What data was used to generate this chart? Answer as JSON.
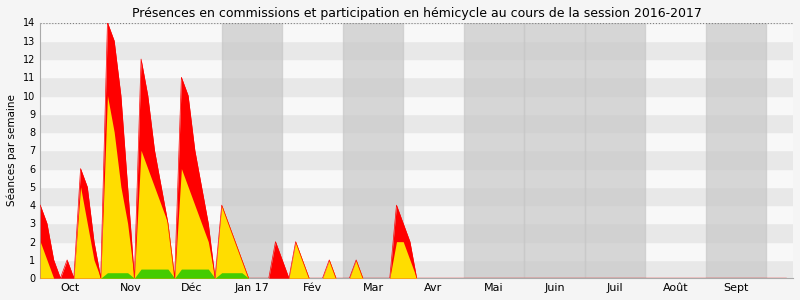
{
  "title": "Présences en commissions et participation en hémicycle au cours de la session 2016-2017",
  "ylabel": "Séances par semaine",
  "ylim": [
    0,
    14
  ],
  "yticks": [
    0,
    1,
    2,
    3,
    4,
    5,
    6,
    7,
    8,
    9,
    10,
    11,
    12,
    13,
    14
  ],
  "xlabel_months": [
    "Oct",
    "Nov",
    "Déc",
    "Jan 17",
    "Fév",
    "Mar",
    "Avr",
    "Mai",
    "Juin",
    "Juil",
    "Août",
    "Sept"
  ],
  "shaded_months": [
    3,
    5,
    7,
    8,
    9,
    11
  ],
  "background_color": "#f0f0f0",
  "shade_color": "#c8c8c8",
  "stripe_colors": [
    "#e8e8e8",
    "#f8f8f8"
  ],
  "color_red": "#ff0000",
  "color_yellow": "#ffdd00",
  "color_green": "#44cc00",
  "x_points": [
    0,
    1,
    2,
    3,
    4,
    5,
    6,
    7,
    8,
    9,
    10,
    11,
    12,
    13,
    14,
    15,
    16,
    17,
    18,
    19,
    20,
    21,
    22,
    23,
    24,
    25,
    26,
    27,
    28,
    29,
    30,
    31,
    32,
    33,
    34,
    35,
    36,
    37,
    38,
    39,
    40,
    41,
    42,
    43,
    44,
    45,
    46,
    47,
    48,
    49,
    50,
    51,
    52,
    53,
    54,
    55,
    56,
    57,
    58,
    59,
    60,
    61,
    62,
    63,
    64,
    65,
    66,
    67,
    68,
    69,
    70,
    71,
    72,
    73,
    74,
    75,
    76,
    77,
    78,
    79,
    80,
    81,
    82,
    83,
    84,
    85,
    86,
    87,
    88,
    89,
    90,
    91,
    92,
    93,
    94,
    95,
    96,
    97,
    98,
    99,
    100,
    101,
    102,
    103,
    104,
    105,
    106,
    107,
    108,
    109,
    110,
    111
  ],
  "red_values": [
    4,
    3,
    1,
    0,
    1,
    0,
    6,
    5,
    2,
    0,
    14,
    13,
    10,
    5,
    0,
    12,
    10,
    7,
    5,
    3,
    0,
    11,
    10,
    7,
    5,
    3,
    0,
    4,
    3,
    2,
    1,
    0,
    0,
    0,
    0,
    2,
    1,
    0,
    2,
    1,
    0,
    0,
    0,
    1,
    0,
    0,
    0,
    1,
    0,
    0,
    0,
    0,
    0,
    4,
    3,
    2,
    0,
    0,
    0,
    0,
    0,
    0,
    0,
    0,
    0,
    0,
    0,
    0,
    0,
    0,
    0,
    0,
    0,
    0,
    0,
    0,
    0,
    0,
    0,
    0,
    0,
    0,
    0,
    0,
    0,
    0,
    0,
    0,
    0,
    0,
    0,
    0,
    0,
    0,
    0,
    0,
    0,
    0,
    0,
    0,
    0,
    0,
    0,
    0,
    0,
    0,
    0,
    0,
    0,
    0,
    0,
    0
  ],
  "yellow_values": [
    2,
    1,
    0,
    0,
    0,
    0,
    5,
    3,
    1,
    0,
    10,
    8,
    5,
    3,
    0,
    7,
    6,
    5,
    4,
    3,
    0,
    6,
    5,
    4,
    3,
    2,
    0,
    4,
    3,
    2,
    1,
    0,
    0,
    0,
    0,
    0,
    0,
    0,
    2,
    1,
    0,
    0,
    0,
    1,
    0,
    0,
    0,
    1,
    0,
    0,
    0,
    0,
    0,
    2,
    2,
    1,
    0,
    0,
    0,
    0,
    0,
    0,
    0,
    0,
    0,
    0,
    0,
    0,
    0,
    0,
    0,
    0,
    0,
    0,
    0,
    0,
    0,
    0,
    0,
    0,
    0,
    0,
    0,
    0,
    0,
    0,
    0,
    0,
    0,
    0,
    0,
    0,
    0,
    0,
    0,
    0,
    0,
    0,
    0,
    0,
    0,
    0,
    0,
    0,
    0,
    0,
    0,
    0,
    0,
    0,
    0,
    0
  ],
  "green_values": [
    0,
    0,
    0,
    0,
    0,
    0,
    0,
    0,
    0,
    0,
    0.3,
    0.3,
    0.3,
    0.3,
    0,
    0.5,
    0.5,
    0.5,
    0.5,
    0.5,
    0,
    0.5,
    0.5,
    0.5,
    0.5,
    0.5,
    0,
    0.3,
    0.3,
    0.3,
    0.3,
    0,
    0,
    0,
    0,
    0,
    0,
    0,
    0,
    0,
    0,
    0,
    0,
    0,
    0,
    0,
    0,
    0,
    0,
    0,
    0,
    0,
    0,
    0,
    0,
    0,
    0,
    0,
    0,
    0,
    0,
    0,
    0,
    0,
    0,
    0,
    0,
    0,
    0,
    0,
    0,
    0,
    0,
    0,
    0,
    0,
    0,
    0,
    0,
    0,
    0,
    0,
    0,
    0,
    0,
    0,
    0,
    0,
    0,
    0,
    0,
    0,
    0,
    0,
    0,
    0,
    0,
    0,
    0,
    0,
    0,
    0,
    0,
    0,
    0,
    0,
    0,
    0,
    0,
    0,
    0,
    0
  ],
  "month_boundaries": [
    0,
    9,
    18,
    27,
    36,
    45,
    54,
    63,
    72,
    81,
    90,
    99,
    108,
    112
  ]
}
